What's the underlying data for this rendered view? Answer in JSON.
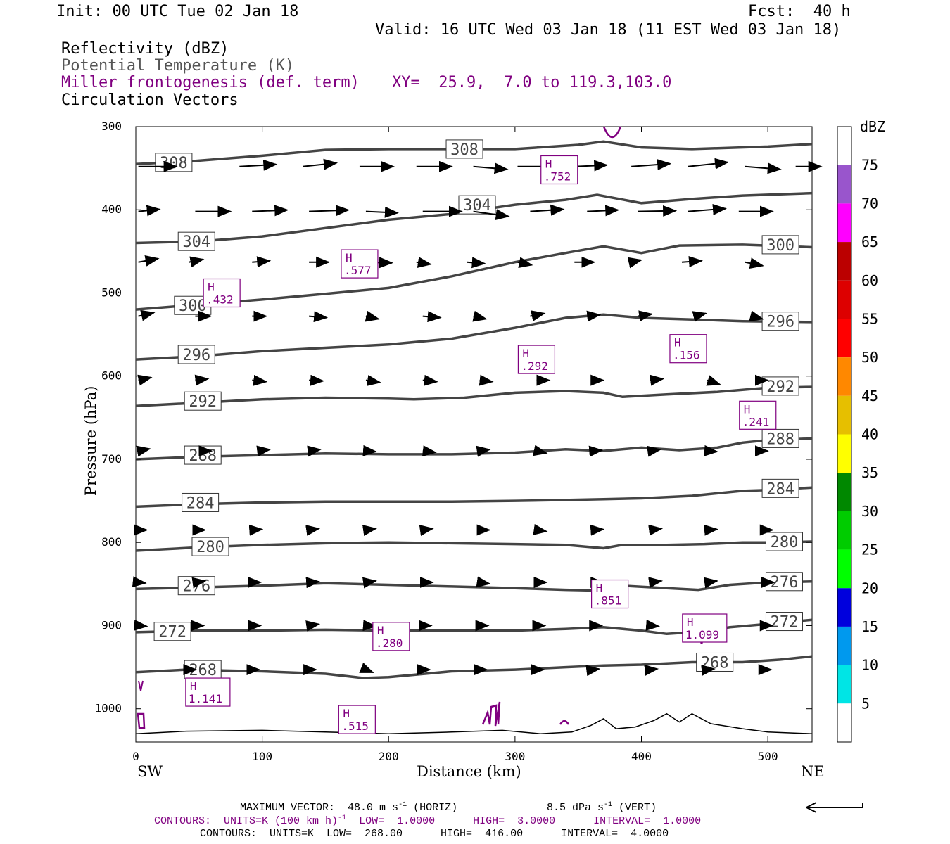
{
  "header": {
    "init": "Init: 00 UTC Tue 02 Jan 18",
    "fcst": "Fcst:  40 h",
    "valid": "Valid: 16 UTC Wed 03 Jan 18 (11 EST Wed 03 Jan 18)"
  },
  "fields": {
    "reflectivity": "Reflectivity (dBZ)",
    "theta": "Potential Temperature (K)",
    "miller": "Miller frontogenesis (def. term)",
    "xy": "XY=  25.9,  7.0 to 119.3,103.0",
    "vectors": "Circulation Vectors"
  },
  "footer": {
    "max_vector_label": "MAXIMUM VECTOR:",
    "max_vector_horiz": "48.0 m s",
    "horiz_tag": "(HORIZ)",
    "max_vector_vert": "8.5 dPa s",
    "vert_tag": "(VERT)",
    "exp": "-1",
    "contours1_a": "CONTOURS:  UNITS=K (100 km h)",
    "contours1_b": "LOW=  1.0000      HIGH=  3.0000      INTERVAL=  1.0000",
    "contours2": "CONTOURS:  UNITS=K  LOW=  268.00      HIGH=  416.00      INTERVAL=  4.0000"
  },
  "colors": {
    "theta": "#444444",
    "frontogenesis": "#800080",
    "terrain": "#000000"
  },
  "chart_data": {
    "type": "cross-section",
    "ylabel": "Pressure (hPa)",
    "xlabel": "Distance (km)",
    "x_left_label": "SW",
    "x_right_label": "NE",
    "x_ticks": [
      0,
      100,
      200,
      300,
      400,
      500
    ],
    "y_ticks": [
      300,
      400,
      500,
      600,
      700,
      800,
      900,
      1000
    ],
    "xlim": [
      0,
      535
    ],
    "ylim": [
      1040,
      300
    ],
    "colorbar": {
      "title": "dBZ",
      "levels": [
        5,
        10,
        15,
        20,
        25,
        30,
        35,
        40,
        45,
        50,
        55,
        60,
        65,
        70,
        75
      ],
      "colors": [
        "#ffffff",
        "#00e5e5",
        "#0099ee",
        "#0000dd",
        "#00ff00",
        "#00cc00",
        "#008800",
        "#ffff00",
        "#e6bf00",
        "#ff8800",
        "#ff0000",
        "#dd0000",
        "#bb0000",
        "#ff00ff",
        "#9955cc",
        "#ffffff"
      ]
    },
    "theta_contours": [
      {
        "label": "308",
        "points": [
          [
            0,
            345
          ],
          [
            40,
            342
          ],
          [
            100,
            335
          ],
          [
            150,
            328
          ],
          [
            200,
            327
          ],
          [
            250,
            327
          ],
          [
            300,
            327
          ],
          [
            350,
            322
          ],
          [
            370,
            318
          ],
          [
            400,
            325
          ],
          [
            440,
            327
          ],
          [
            500,
            324
          ],
          [
            535,
            321
          ]
        ]
      },
      {
        "label": "304",
        "points": [
          [
            0,
            440
          ],
          [
            50,
            438
          ],
          [
            100,
            432
          ],
          [
            150,
            422
          ],
          [
            200,
            412
          ],
          [
            250,
            405
          ],
          [
            300,
            394
          ],
          [
            340,
            388
          ],
          [
            365,
            382
          ],
          [
            400,
            392
          ],
          [
            440,
            387
          ],
          [
            480,
            383
          ],
          [
            535,
            380
          ]
        ]
      },
      {
        "label": "300",
        "points": [
          [
            0,
            520
          ],
          [
            50,
            514
          ],
          [
            100,
            508
          ],
          [
            150,
            501
          ],
          [
            200,
            494
          ],
          [
            250,
            480
          ],
          [
            300,
            463
          ],
          [
            340,
            452
          ],
          [
            370,
            444
          ],
          [
            400,
            452
          ],
          [
            430,
            443
          ],
          [
            480,
            442
          ],
          [
            535,
            445
          ]
        ]
      },
      {
        "label": "296",
        "points": [
          [
            0,
            580
          ],
          [
            50,
            576
          ],
          [
            100,
            570
          ],
          [
            150,
            566
          ],
          [
            200,
            562
          ],
          [
            250,
            555
          ],
          [
            300,
            542
          ],
          [
            340,
            530
          ],
          [
            370,
            526
          ],
          [
            400,
            530
          ],
          [
            440,
            532
          ],
          [
            480,
            534
          ],
          [
            535,
            535
          ]
        ]
      },
      {
        "label": "292",
        "points": [
          [
            0,
            636
          ],
          [
            50,
            632
          ],
          [
            100,
            628
          ],
          [
            150,
            626
          ],
          [
            200,
            627
          ],
          [
            220,
            628
          ],
          [
            260,
            626
          ],
          [
            300,
            620
          ],
          [
            340,
            618
          ],
          [
            370,
            620
          ],
          [
            385,
            625
          ],
          [
            420,
            622
          ],
          [
            460,
            619
          ],
          [
            500,
            614
          ],
          [
            535,
            613
          ]
        ]
      },
      {
        "label": "288",
        "points": [
          [
            0,
            700
          ],
          [
            50,
            697
          ],
          [
            100,
            695
          ],
          [
            150,
            693
          ],
          [
            200,
            694
          ],
          [
            250,
            694
          ],
          [
            300,
            692
          ],
          [
            340,
            688
          ],
          [
            370,
            690
          ],
          [
            400,
            686
          ],
          [
            430,
            689
          ],
          [
            460,
            686
          ],
          [
            480,
            680
          ],
          [
            500,
            677
          ],
          [
            535,
            675
          ]
        ]
      },
      {
        "label": "284",
        "points": [
          [
            0,
            757
          ],
          [
            50,
            754
          ],
          [
            100,
            752
          ],
          [
            150,
            751
          ],
          [
            200,
            751
          ],
          [
            250,
            751
          ],
          [
            300,
            750
          ],
          [
            340,
            749
          ],
          [
            370,
            748
          ],
          [
            400,
            747
          ],
          [
            440,
            744
          ],
          [
            480,
            738
          ],
          [
            500,
            737
          ],
          [
            535,
            734
          ]
        ]
      },
      {
        "label": "280",
        "points": [
          [
            0,
            810
          ],
          [
            50,
            806
          ],
          [
            100,
            803
          ],
          [
            150,
            801
          ],
          [
            200,
            800
          ],
          [
            250,
            801
          ],
          [
            300,
            802
          ],
          [
            340,
            803
          ],
          [
            370,
            807
          ],
          [
            385,
            803
          ],
          [
            420,
            803
          ],
          [
            450,
            802
          ],
          [
            480,
            800
          ],
          [
            500,
            800
          ],
          [
            535,
            799
          ]
        ]
      },
      {
        "label": "276",
        "points": [
          [
            0,
            856
          ],
          [
            50,
            854
          ],
          [
            100,
            852
          ],
          [
            150,
            849
          ],
          [
            200,
            851
          ],
          [
            250,
            853
          ],
          [
            300,
            855
          ],
          [
            340,
            857
          ],
          [
            370,
            858
          ],
          [
            385,
            852
          ],
          [
            420,
            855
          ],
          [
            445,
            857
          ],
          [
            470,
            851
          ],
          [
            500,
            848
          ],
          [
            535,
            847
          ]
        ]
      },
      {
        "label": "272",
        "points": [
          [
            0,
            908
          ],
          [
            50,
            906
          ],
          [
            100,
            906
          ],
          [
            150,
            905
          ],
          [
            200,
            906
          ],
          [
            250,
            906
          ],
          [
            300,
            906
          ],
          [
            340,
            904
          ],
          [
            370,
            902
          ],
          [
            400,
            906
          ],
          [
            420,
            910
          ],
          [
            450,
            907
          ],
          [
            470,
            902
          ],
          [
            500,
            898
          ],
          [
            535,
            893
          ]
        ]
      },
      {
        "label": "268",
        "points": [
          [
            0,
            956
          ],
          [
            40,
            953
          ],
          [
            100,
            955
          ],
          [
            150,
            958
          ],
          [
            180,
            963
          ],
          [
            200,
            962
          ],
          [
            250,
            955
          ],
          [
            300,
            953
          ],
          [
            340,
            950
          ],
          [
            370,
            948
          ],
          [
            400,
            947
          ],
          [
            440,
            944
          ],
          [
            480,
            944
          ],
          [
            510,
            941
          ],
          [
            535,
            937
          ]
        ]
      }
    ],
    "frontogenesis_highs": [
      {
        "label": "H",
        "value": ".752"
      },
      {
        "label": "H",
        "value": ".577"
      },
      {
        "label": "H",
        "value": ".432"
      },
      {
        "label": "H",
        "value": ".292"
      },
      {
        "label": "H",
        "value": ".156"
      },
      {
        "label": "H",
        "value": ".241"
      },
      {
        "label": "H",
        "value": ".851"
      },
      {
        "label": "H",
        "value": ".280"
      },
      {
        "label": "H",
        "value": "1.099"
      },
      {
        "label": "H",
        "value": "1.141"
      },
      {
        "label": "H",
        "value": ".515"
      }
    ]
  }
}
